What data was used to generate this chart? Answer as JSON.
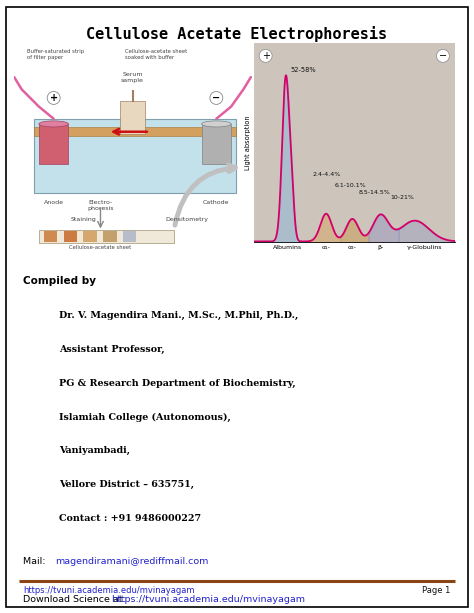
{
  "title": "Cellulose Acetate Electrophoresis",
  "title_fontsize": 11,
  "page_bg": "#ffffff",
  "border_color": "#000000",
  "compiled_by_label": "Compiled by",
  "compiled_by_lines": [
    "Dr. V. Magendira Mani., M.Sc., M.Phil, Ph.D.,",
    "Assistant Professor,",
    "PG & Research Department of Biochemistry,",
    "Islamiah College (Autonomous),",
    "Vaniyambadi,",
    "Vellore District – 635751,",
    "Contact : +91 9486000227"
  ],
  "mail_label": "Mail: ",
  "mail_link": "magendiramani@rediffmail.com",
  "download_label": "Download Science at: ",
  "download_link": "https://tvuni.academia.edu/mvinayagam",
  "footer_link": "https://tvuni.academia.edu/mvinayagam",
  "footer_page": "Page 1",
  "footer_line_color": "#8B4513",
  "graph_bg": "#cdc5bc",
  "graph_line_color": "#d4006a",
  "peak_labels": [
    "52-58%",
    "2.4-4.4%",
    "6.1-10.1%",
    "8.5-14.5%",
    "10-21%"
  ],
  "x_labels": [
    "Albumins",
    "α₁-",
    "α₂-",
    "β-",
    "γ-Globulins"
  ],
  "y_label": "Light absorption",
  "tank_color": "#b8dce8",
  "strip_color": "#d4a060",
  "anode_color": "#d06070",
  "wire_color": "#e060a0",
  "serum_color": "#e8d8c0",
  "sheet_color": "#f0e8d8",
  "band_colors": [
    "#cc8040",
    "#c87030",
    "#d4a060",
    "#c09860",
    "#b0b8c8"
  ],
  "arrow_color": "#b0b0b0",
  "label_color": "#444444"
}
